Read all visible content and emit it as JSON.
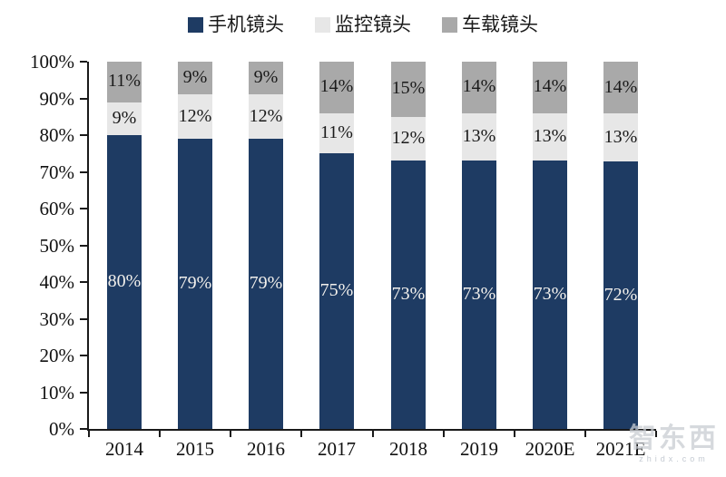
{
  "watermark": {
    "brand": "智东西",
    "domain": "zhidx.com"
  },
  "chart_data": {
    "type": "bar",
    "stacked": true,
    "title": "",
    "xlabel": "",
    "ylabel": "",
    "grid": false,
    "legend_position": "top",
    "ylim": [
      0,
      100
    ],
    "ytick_step": 10,
    "yticks": [
      "0%",
      "10%",
      "20%",
      "30%",
      "40%",
      "50%",
      "60%",
      "70%",
      "80%",
      "90%",
      "100%"
    ],
    "categories": [
      "2014",
      "2015",
      "2016",
      "2017",
      "2018",
      "2019",
      "2020E",
      "2021E"
    ],
    "series": [
      {
        "name": "手机镜头",
        "color": "#1e3b63",
        "label_color": "#f2f0ec",
        "values": [
          80,
          79,
          79,
          75,
          73,
          73,
          73,
          72
        ],
        "labels": [
          "80%",
          "79%",
          "79%",
          "75%",
          "73%",
          "73%",
          "73%",
          "72%"
        ]
      },
      {
        "name": "监控镜头",
        "color": "#e7e7e7",
        "label_color": "#1a1a1a",
        "values": [
          9,
          12,
          12,
          11,
          12,
          13,
          13,
          13
        ],
        "labels": [
          "9%",
          "12%",
          "12%",
          "11%",
          "12%",
          "13%",
          "13%",
          "13%"
        ]
      },
      {
        "name": "车载镜头",
        "color": "#a9a9a9",
        "label_color": "#1a1a1a",
        "values": [
          11,
          9,
          9,
          14,
          15,
          14,
          14,
          14
        ],
        "labels": [
          "11%",
          "9%",
          "9%",
          "14%",
          "15%",
          "14%",
          "14%",
          "14%"
        ]
      }
    ]
  }
}
